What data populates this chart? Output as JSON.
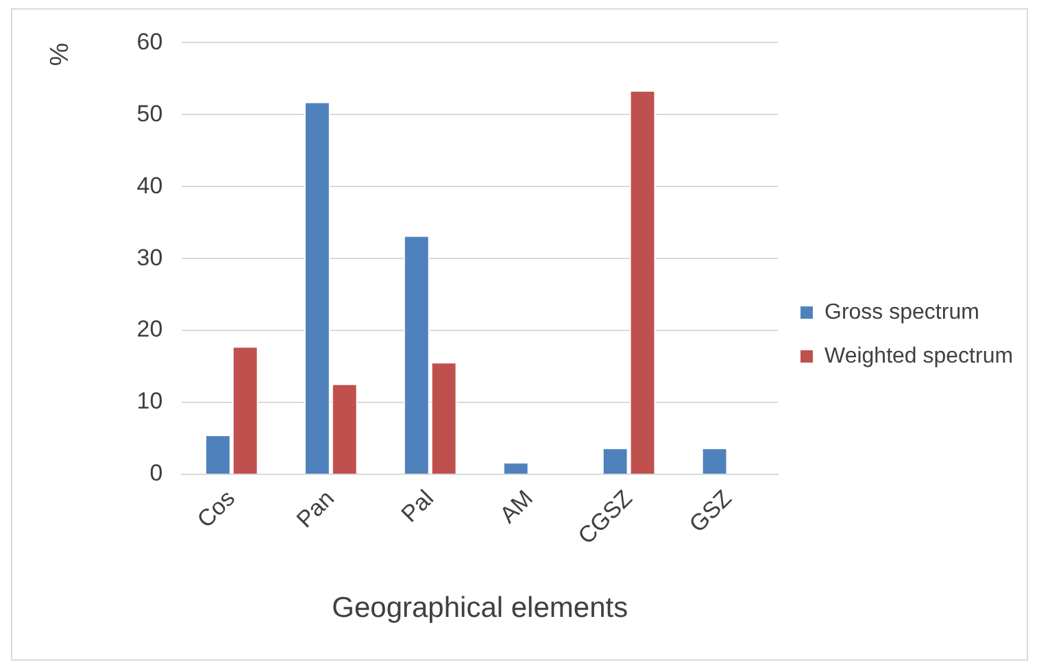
{
  "chart_data": {
    "type": "bar",
    "xlabel": "Geographical elements",
    "ylabel": "%",
    "categories": [
      "Cos",
      "Pan",
      "Pal",
      "AM",
      "CGSZ",
      "GSZ"
    ],
    "series": [
      {
        "name": "Gross spectrum",
        "color": "#4f81bd",
        "values": [
          5.5,
          51.8,
          33.2,
          1.7,
          3.7,
          3.7
        ]
      },
      {
        "name": "Weighted spectrum",
        "color": "#c0504d",
        "values": [
          17.8,
          12.6,
          15.6,
          0,
          53.4,
          0
        ]
      }
    ],
    "ylim": [
      0,
      60
    ],
    "yticks": [
      0,
      10,
      20,
      30,
      40,
      50,
      60
    ],
    "grid": "y",
    "legend": "right"
  }
}
